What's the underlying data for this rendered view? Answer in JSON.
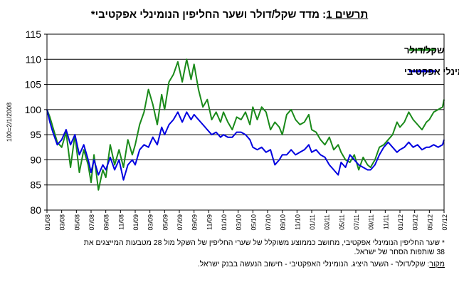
{
  "title": {
    "label": "תרשים 1",
    "text": ": מדד שקל/דולר ושער החליפין הנומינלי אפקטיבי*"
  },
  "notes": {
    "line1": "* שער החליפין הנומינלי אפקטיבי, מחושב כממוצע משוקלל של שערי החליפין של השקל מול 28 מטבעות המייצגים את",
    "line2": "38 שותפות הסחר של ישראל.",
    "source_label": "מקור",
    "source_text": ": שקל/דולר - השער היציג. הנומינלי האפקטיבי - חישוב הנעשה בבנק ישראל."
  },
  "chart_data": {
    "type": "line",
    "title": "",
    "xlabel": "",
    "ylabel": "100=2/1/2008",
    "ylim": [
      80,
      115
    ],
    "yticks": [
      80,
      85,
      90,
      95,
      100,
      105,
      110,
      115
    ],
    "xticks": [
      "01/08",
      "03/08",
      "05/08",
      "07/08",
      "09/08",
      "11/08",
      "01/09",
      "03/09",
      "05/09",
      "07/09",
      "09/09",
      "11/09",
      "01/10",
      "03/10",
      "05/10",
      "07/10",
      "09/10",
      "11/10",
      "01/11",
      "03/11",
      "05/11",
      "07/11",
      "09/11",
      "11/11",
      "01/12",
      "03/12",
      "05/12",
      "07/12"
    ],
    "grid": "horizontal",
    "legend_position": "top-right",
    "series": [
      {
        "name": "שקל/דולר",
        "color": "#1a8a1a",
        "x": [
          0,
          0.2,
          0.4,
          0.7,
          1.0,
          1.3,
          1.6,
          1.9,
          2.2,
          2.5,
          2.8,
          3.0,
          3.2,
          3.5,
          3.8,
          4.0,
          4.3,
          4.6,
          4.9,
          5.2,
          5.5,
          5.8,
          6.0,
          6.3,
          6.6,
          6.9,
          7.2,
          7.5,
          7.8,
          8.0,
          8.3,
          8.6,
          8.9,
          9.2,
          9.5,
          9.8,
          10.0,
          10.3,
          10.6,
          10.9,
          11.2,
          11.5,
          11.8,
          12.0,
          12.3,
          12.6,
          12.9,
          13.2,
          13.5,
          13.8,
          14.0,
          14.3,
          14.6,
          14.9,
          15.2,
          15.5,
          15.8,
          16.0,
          16.3,
          16.6,
          16.9,
          17.2,
          17.5,
          17.8,
          18.0,
          18.3,
          18.6,
          18.9,
          19.2,
          19.5,
          19.8,
          20.0,
          20.3,
          20.6,
          20.9,
          21.2,
          21.5,
          21.8,
          22.0,
          22.3,
          22.6,
          22.9,
          23.2,
          23.5,
          23.8,
          24.0,
          24.3,
          24.6,
          24.9,
          25.2,
          25.5,
          25.8,
          26.0,
          26.3,
          26.6,
          26.9,
          27.0
        ],
        "values": [
          100,
          98.5,
          96.5,
          93.5,
          92.5,
          95.5,
          88.5,
          95,
          87.5,
          92,
          89,
          85.5,
          91,
          84,
          88,
          86.5,
          93,
          89,
          92,
          88.5,
          94,
          91,
          93,
          97,
          99.5,
          104,
          101,
          97,
          103,
          100,
          105.5,
          107,
          109.5,
          105.5,
          110,
          106,
          109,
          104,
          100.5,
          102,
          98,
          99.5,
          97.5,
          99.5,
          97.5,
          96,
          98.5,
          98,
          99.5,
          97,
          100.5,
          98,
          100.5,
          99.5,
          96,
          97.5,
          96.5,
          95,
          99,
          100,
          98,
          97,
          97.5,
          99,
          96,
          95.5,
          94,
          93,
          94.5,
          92,
          93,
          91.5,
          90,
          89.5,
          91,
          88,
          90.5,
          89,
          88.5,
          90,
          92.5,
          93,
          94,
          95,
          97.5,
          96.5,
          97.5,
          99.5,
          98,
          97,
          96,
          97.5,
          98,
          99.5,
          100,
          100.5,
          102
        ]
      },
      {
        "name": "נומינלי אפקטיבי",
        "color": "#0000e0",
        "x": [
          0,
          0.2,
          0.4,
          0.7,
          1.0,
          1.3,
          1.6,
          1.9,
          2.2,
          2.5,
          2.8,
          3.0,
          3.2,
          3.5,
          3.8,
          4.0,
          4.3,
          4.6,
          4.9,
          5.2,
          5.5,
          5.8,
          6.0,
          6.3,
          6.6,
          6.9,
          7.2,
          7.5,
          7.8,
          8.0,
          8.3,
          8.6,
          8.9,
          9.2,
          9.5,
          9.8,
          10.0,
          10.3,
          10.6,
          10.9,
          11.2,
          11.5,
          11.8,
          12.0,
          12.3,
          12.6,
          12.9,
          13.2,
          13.5,
          13.8,
          14.0,
          14.3,
          14.6,
          14.9,
          15.2,
          15.5,
          15.8,
          16.0,
          16.3,
          16.6,
          16.9,
          17.2,
          17.5,
          17.8,
          18.0,
          18.3,
          18.6,
          18.9,
          19.2,
          19.5,
          19.8,
          20.0,
          20.3,
          20.6,
          20.9,
          21.2,
          21.5,
          21.8,
          22.0,
          22.3,
          22.6,
          22.9,
          23.2,
          23.5,
          23.8,
          24.0,
          24.3,
          24.6,
          24.9,
          25.2,
          25.5,
          25.8,
          26.0,
          26.3,
          26.6,
          26.9,
          27.0
        ],
        "values": [
          100,
          97.5,
          95.5,
          93,
          94,
          96,
          93,
          95,
          91,
          93,
          90,
          87.5,
          90,
          87,
          89,
          88,
          90.5,
          88,
          90,
          86,
          89,
          90,
          89,
          92,
          93,
          92.5,
          94.5,
          93,
          96.5,
          95,
          97,
          98,
          99.5,
          97.5,
          99.5,
          98,
          99,
          98,
          97,
          96,
          95,
          95.5,
          94.5,
          95,
          94.5,
          94.5,
          95.5,
          95.5,
          95,
          94,
          92.5,
          92,
          92.5,
          91.5,
          92,
          89,
          90,
          91,
          91,
          92,
          91,
          91.5,
          92,
          93,
          91.5,
          92,
          91,
          90.5,
          89,
          88,
          87,
          89.5,
          88.5,
          91,
          90,
          89,
          88.5,
          88,
          88,
          89,
          91,
          92.5,
          93.5,
          92.5,
          91.5,
          92,
          92.5,
          93.5,
          92.5,
          93,
          92,
          92.5,
          92.5,
          93,
          92.5,
          93,
          94
        ]
      }
    ]
  }
}
